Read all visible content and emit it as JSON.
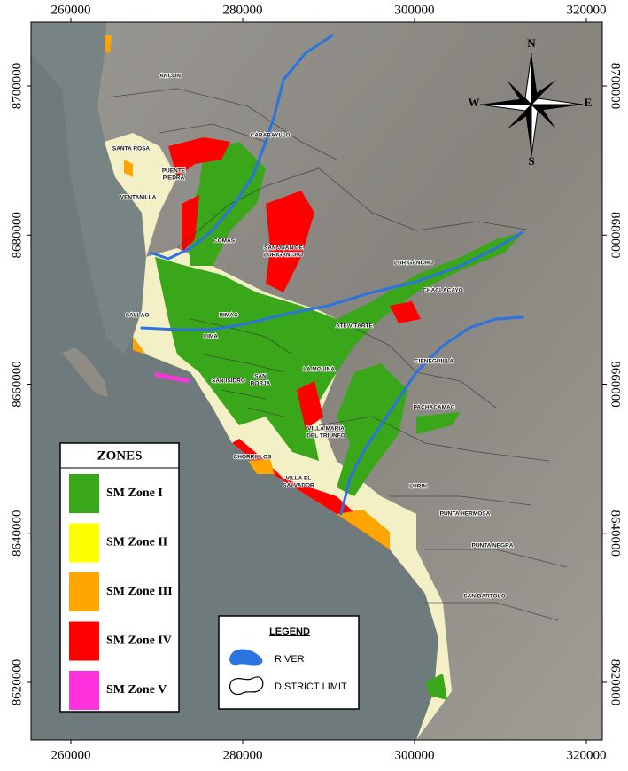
{
  "map": {
    "xticks": [
      260000,
      280000,
      300000,
      320000
    ],
    "yticks": [
      8700000,
      8680000,
      8660000,
      8640000,
      8620000
    ],
    "compass": {
      "north": "N",
      "south": "S",
      "east": "E",
      "west": "W"
    },
    "districts": [
      {
        "lines": [
          "ANCON"
        ]
      },
      {
        "lines": [
          "CARABAYLLO"
        ]
      },
      {
        "lines": [
          "SANTA ROSA"
        ]
      },
      {
        "lines": [
          "PUENTE",
          "PIEDRA"
        ]
      },
      {
        "lines": [
          "VENTANILLA"
        ]
      },
      {
        "lines": [
          "COMAS"
        ]
      },
      {
        "lines": [
          "SAN JUAN DE",
          "LURIGANCHO"
        ]
      },
      {
        "lines": [
          "LURIGANCHO"
        ]
      },
      {
        "lines": [
          "CHACLACAYO"
        ]
      },
      {
        "lines": [
          "CALLAO"
        ]
      },
      {
        "lines": [
          "RIMAC"
        ]
      },
      {
        "lines": [
          "ATE VITARTE"
        ]
      },
      {
        "lines": [
          "LIMA"
        ]
      },
      {
        "lines": [
          "CIENEGUILLA"
        ]
      },
      {
        "lines": [
          "LA MOLINA"
        ]
      },
      {
        "lines": [
          "SAN ISIDRO"
        ]
      },
      {
        "lines": [
          "SAN",
          "BORJA"
        ]
      },
      {
        "lines": [
          "PACHACAMAC"
        ]
      },
      {
        "lines": [
          "VILLA MARIA",
          "DEL TRIUNFO"
        ]
      },
      {
        "lines": [
          "CHORRILLOS"
        ]
      },
      {
        "lines": [
          "VILLA EL",
          "SALVADOR"
        ]
      },
      {
        "lines": [
          "LURIN"
        ]
      },
      {
        "lines": [
          "PUNTA HERMOSA"
        ]
      },
      {
        "lines": [
          "PUNTA NEGRA"
        ]
      },
      {
        "lines": [
          "SAN BARTOLO"
        ]
      }
    ],
    "zones_legend": {
      "title": "ZONES",
      "items": [
        {
          "label": "SM Zone I",
          "color": "#3aa619"
        },
        {
          "label": "SM Zone II",
          "color": "#ffff00"
        },
        {
          "label": "SM Zone III",
          "color": "#ffa500"
        },
        {
          "label": "SM Zone IV",
          "color": "#ff0000"
        },
        {
          "label": "SM Zone V",
          "color": "#ff33dd"
        }
      ]
    },
    "legend": {
      "title": "LEGEND",
      "items": [
        {
          "label": "RIVER"
        },
        {
          "label": "DISTRICT LIMIT"
        }
      ]
    }
  }
}
